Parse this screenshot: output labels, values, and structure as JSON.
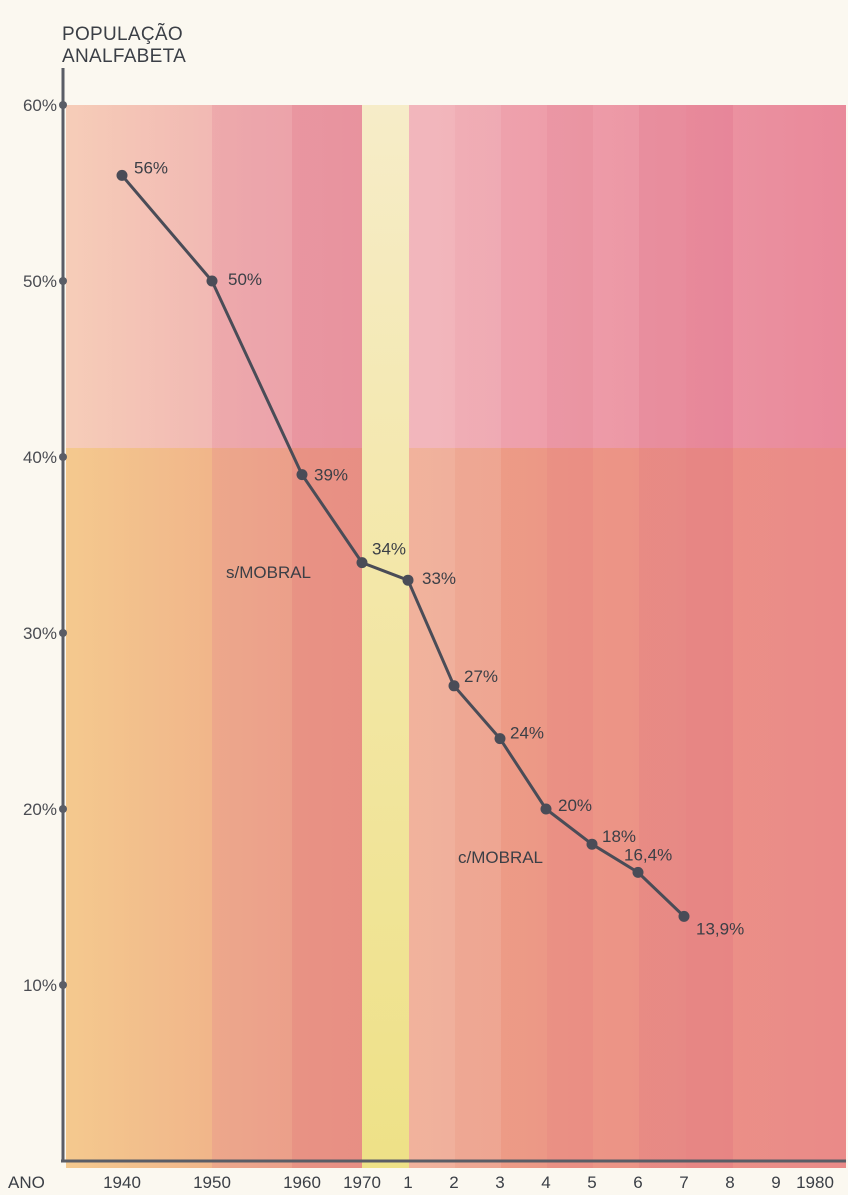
{
  "chart_data": {
    "type": "line",
    "title_lines": [
      "POPULAÇÃO",
      "ANALFABETA"
    ],
    "xlabel": "ANO",
    "ylim": [
      0,
      60
    ],
    "y_ticks": [
      {
        "value": 10,
        "label": "10%"
      },
      {
        "value": 20,
        "label": "20%"
      },
      {
        "value": 30,
        "label": "30%"
      },
      {
        "value": 40,
        "label": "40%"
      },
      {
        "value": 50,
        "label": "50%"
      },
      {
        "value": 60,
        "label": "60%"
      }
    ],
    "x_ticks": [
      {
        "label": "1940",
        "pos": 0
      },
      {
        "label": "1950",
        "pos": 1
      },
      {
        "label": "1960",
        "pos": 2
      },
      {
        "label": "1970",
        "pos": 3
      },
      {
        "label": "1",
        "pos": 4
      },
      {
        "label": "2",
        "pos": 5
      },
      {
        "label": "3",
        "pos": 6
      },
      {
        "label": "4",
        "pos": 7
      },
      {
        "label": "5",
        "pos": 8
      },
      {
        "label": "6",
        "pos": 9
      },
      {
        "label": "7",
        "pos": 10
      },
      {
        "label": "8",
        "pos": 11
      },
      {
        "label": "9",
        "pos": 12
      },
      {
        "label": "1980",
        "pos": 13
      }
    ],
    "points": [
      {
        "x": "1940",
        "y": 56,
        "label": "56%"
      },
      {
        "x": "1950",
        "y": 50,
        "label": "50%"
      },
      {
        "x": "1960",
        "y": 39,
        "label": "39%"
      },
      {
        "x": "1970",
        "y": 34,
        "label": "34%"
      },
      {
        "x": "1971",
        "y": 33,
        "label": "33%"
      },
      {
        "x": "1972",
        "y": 27,
        "label": "27%"
      },
      {
        "x": "1973",
        "y": 24,
        "label": "24%"
      },
      {
        "x": "1974",
        "y": 20,
        "label": "20%"
      },
      {
        "x": "1975",
        "y": 18,
        "label": "18%"
      },
      {
        "x": "1976",
        "y": 16.4,
        "label": "16,4%"
      },
      {
        "x": "1977",
        "y": 13.9,
        "label": "13,9%"
      }
    ],
    "annotations": [
      "s/MOBRAL",
      "c/MOBRAL"
    ],
    "colors": {
      "line": "#4a4c57",
      "axis": "#5a5d66",
      "highlight_band": "#f1e79c",
      "background_pink": "#ea8c9a",
      "background_orange": "#eeb082"
    }
  }
}
